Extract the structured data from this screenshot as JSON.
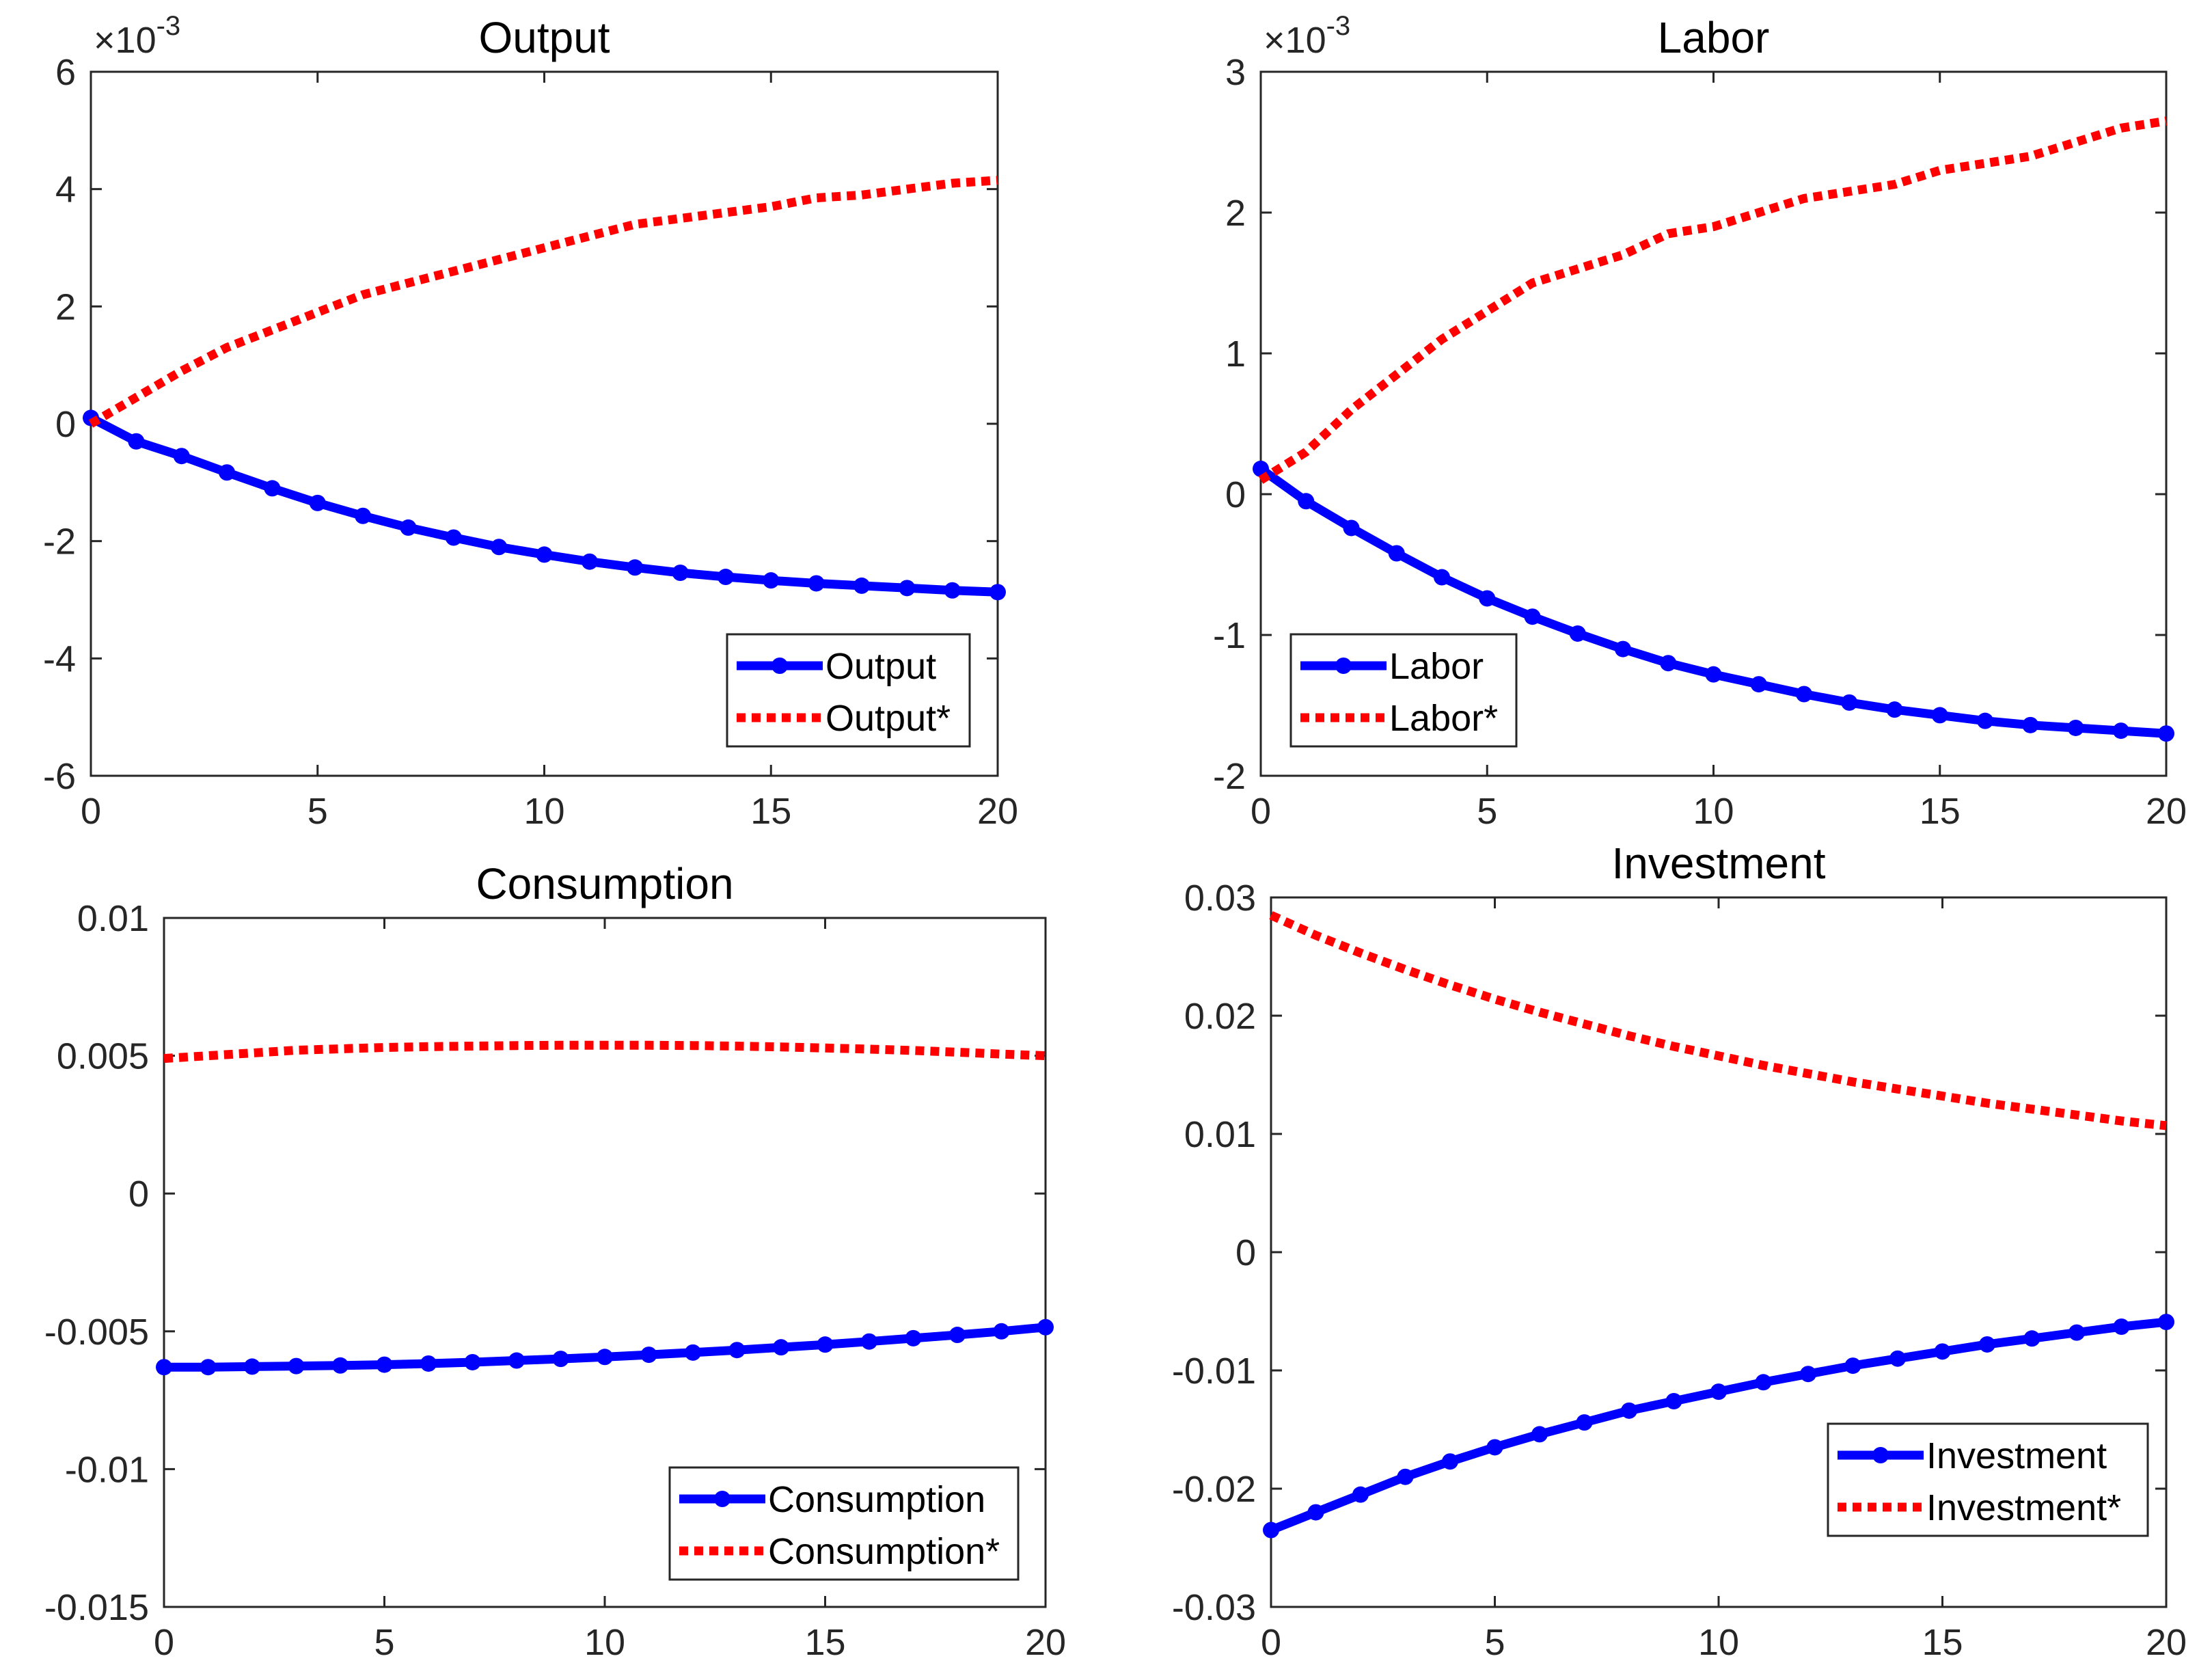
{
  "chart_data": [
    {
      "type": "line",
      "title": "Output",
      "exponent_label": "×10",
      "exponent_power": "-3",
      "xlim": [
        0,
        20
      ],
      "ylim": [
        -6,
        6
      ],
      "xticks": [
        0,
        5,
        10,
        15,
        20
      ],
      "yticks": [
        -6,
        -4,
        -2,
        0,
        2,
        4,
        6
      ],
      "yscale": 0.001,
      "x": [
        0,
        1,
        2,
        3,
        4,
        5,
        6,
        7,
        8,
        9,
        10,
        11,
        12,
        13,
        14,
        15,
        16,
        17,
        18,
        19,
        20
      ],
      "series": [
        {
          "name": "Output",
          "color": "#0000ff",
          "style": "solid-marker",
          "values": [
            0.0001,
            -0.0003,
            -0.00055,
            -0.00083,
            -0.0011,
            -0.00135,
            -0.00157,
            -0.00177,
            -0.00194,
            -0.0021,
            -0.00223,
            -0.00235,
            -0.00245,
            -0.00254,
            -0.00261,
            -0.00267,
            -0.00272,
            -0.00276,
            -0.0028,
            -0.00284,
            -0.00287
          ]
        },
        {
          "name": "Output*",
          "color": "#ff0000",
          "style": "dotted",
          "values": [
            0.0,
            0.00045,
            0.0009,
            0.0013,
            0.0016,
            0.0019,
            0.0022,
            0.0024,
            0.0026,
            0.0028,
            0.003,
            0.0032,
            0.0034,
            0.0035,
            0.0036,
            0.0037,
            0.00385,
            0.0039,
            0.004,
            0.0041,
            0.00415
          ]
        }
      ],
      "legend_position": "bottom-right"
    },
    {
      "type": "line",
      "title": "Labor",
      "exponent_label": "×10",
      "exponent_power": "-3",
      "xlim": [
        0,
        20
      ],
      "ylim": [
        -2,
        3
      ],
      "xticks": [
        0,
        5,
        10,
        15,
        20
      ],
      "yticks": [
        -2,
        -1,
        0,
        1,
        2,
        3
      ],
      "yscale": 0.001,
      "x": [
        0,
        1,
        2,
        3,
        4,
        5,
        6,
        7,
        8,
        9,
        10,
        11,
        12,
        13,
        14,
        15,
        16,
        17,
        18,
        19,
        20
      ],
      "series": [
        {
          "name": "Labor",
          "color": "#0000ff",
          "style": "solid-marker",
          "values": [
            0.00018,
            -5e-05,
            -0.00024,
            -0.00042,
            -0.00059,
            -0.00074,
            -0.00087,
            -0.00099,
            -0.0011,
            -0.0012,
            -0.00128,
            -0.00135,
            -0.00142,
            -0.00148,
            -0.00153,
            -0.00157,
            -0.00161,
            -0.00164,
            -0.00166,
            -0.00168,
            -0.0017
          ]
        },
        {
          "name": "Labor*",
          "color": "#ff0000",
          "style": "dotted",
          "values": [
            0.0001,
            0.0003,
            0.0006,
            0.00085,
            0.0011,
            0.0013,
            0.0015,
            0.0016,
            0.0017,
            0.00185,
            0.0019,
            0.002,
            0.0021,
            0.00215,
            0.0022,
            0.0023,
            0.00235,
            0.0024,
            0.0025,
            0.0026,
            0.00265
          ]
        }
      ],
      "legend_position": "bottom-left"
    },
    {
      "type": "line",
      "title": "Consumption",
      "xlim": [
        0,
        20
      ],
      "ylim": [
        -0.015,
        0.01
      ],
      "xticks": [
        0,
        5,
        10,
        15,
        20
      ],
      "yticks": [
        -0.015,
        -0.01,
        -0.005,
        0,
        0.005,
        0.01
      ],
      "ytick_labels": [
        "-0.015",
        "-0.01",
        "-0.005",
        "0",
        "0.005",
        "0.01"
      ],
      "x": [
        0,
        1,
        2,
        3,
        4,
        5,
        6,
        7,
        8,
        9,
        10,
        11,
        12,
        13,
        14,
        15,
        16,
        17,
        18,
        19,
        20
      ],
      "series": [
        {
          "name": "Consumption",
          "color": "#0000ff",
          "style": "solid-marker",
          "values": [
            -0.0063,
            -0.0063,
            -0.00628,
            -0.00626,
            -0.00624,
            -0.00621,
            -0.00617,
            -0.00612,
            -0.00606,
            -0.006,
            -0.00593,
            -0.00585,
            -0.00577,
            -0.00568,
            -0.00558,
            -0.00548,
            -0.00537,
            -0.00525,
            -0.00513,
            -0.005,
            -0.00485
          ]
        },
        {
          "name": "Consumption*",
          "color": "#ff0000",
          "style": "dotted",
          "values": [
            0.0049,
            0.005,
            0.0051,
            0.0052,
            0.00525,
            0.0053,
            0.00533,
            0.00535,
            0.00537,
            0.00538,
            0.00538,
            0.00538,
            0.00537,
            0.00535,
            0.00532,
            0.00528,
            0.00524,
            0.00519,
            0.00513,
            0.00506,
            0.005
          ]
        }
      ],
      "legend_position": "bottom-right"
    },
    {
      "type": "line",
      "title": "Investment",
      "xlim": [
        0,
        20
      ],
      "ylim": [
        -0.03,
        0.03
      ],
      "xticks": [
        0,
        5,
        10,
        15,
        20
      ],
      "yticks": [
        -0.03,
        -0.02,
        -0.01,
        0,
        0.01,
        0.02,
        0.03
      ],
      "ytick_labels": [
        "-0.03",
        "-0.02",
        "-0.01",
        "0",
        "0.01",
        "0.02",
        "0.03"
      ],
      "x": [
        0,
        1,
        2,
        3,
        4,
        5,
        6,
        7,
        8,
        9,
        10,
        11,
        12,
        13,
        14,
        15,
        16,
        17,
        18,
        19,
        20
      ],
      "series": [
        {
          "name": "Investment",
          "color": "#0000ff",
          "style": "solid-marker",
          "values": [
            -0.0235,
            -0.022,
            -0.0205,
            -0.019,
            -0.0177,
            -0.0165,
            -0.0154,
            -0.0144,
            -0.0134,
            -0.0126,
            -0.0118,
            -0.011,
            -0.0103,
            -0.0096,
            -0.009,
            -0.0084,
            -0.0078,
            -0.0073,
            -0.0068,
            -0.0063,
            -0.0059
          ]
        },
        {
          "name": "Investment*",
          "color": "#ff0000",
          "style": "dotted",
          "values": [
            0.0285,
            0.0268,
            0.0253,
            0.0239,
            0.0226,
            0.0214,
            0.0203,
            0.0193,
            0.0183,
            0.0174,
            0.0166,
            0.0158,
            0.0151,
            0.0144,
            0.0138,
            0.0132,
            0.0126,
            0.0121,
            0.0116,
            0.0111,
            0.0107
          ]
        }
      ],
      "legend_position": "bottom-right"
    }
  ]
}
